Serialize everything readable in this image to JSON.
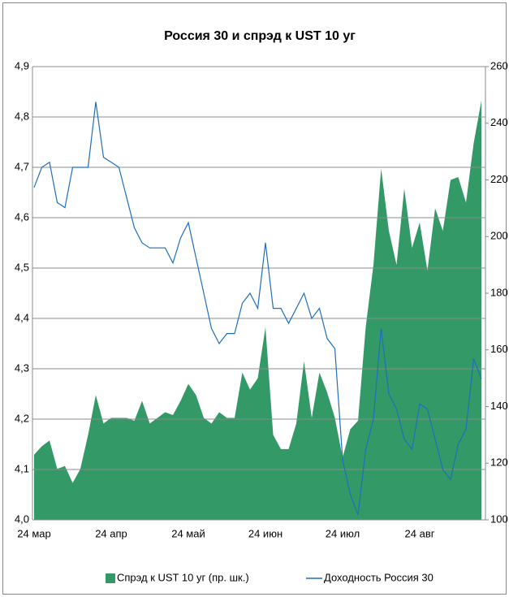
{
  "chart_data": {
    "type": "line",
    "title": "Россия 30 и спрэд к UST 10 уг",
    "categories": [
      "24 мар",
      null,
      null,
      null,
      null,
      null,
      null,
      null,
      null,
      null,
      "24 апр",
      null,
      null,
      null,
      null,
      null,
      null,
      null,
      null,
      null,
      "24 май",
      null,
      null,
      null,
      null,
      null,
      null,
      null,
      null,
      null,
      "24 июн",
      null,
      null,
      null,
      null,
      null,
      null,
      null,
      null,
      null,
      "24 июл",
      null,
      null,
      null,
      null,
      null,
      null,
      null,
      null,
      null,
      "24 авг",
      null,
      null,
      null,
      null,
      null,
      null,
      null,
      null
    ],
    "series": [
      {
        "name": "Спрэд к UST 10 уг (пр. шк.)",
        "type": "area",
        "axis": "y2",
        "color": "#339966",
        "values": [
          123,
          126,
          128,
          118,
          119,
          113,
          118,
          130,
          144,
          134,
          136,
          136,
          136,
          135,
          142,
          134,
          136,
          138,
          137,
          142,
          148,
          144,
          136,
          134,
          138,
          136,
          136,
          152,
          146,
          150,
          168,
          130,
          125,
          125,
          134,
          156,
          136,
          152,
          145,
          136,
          122,
          132,
          135,
          168,
          190,
          224,
          202,
          190,
          217,
          196,
          205,
          188,
          210,
          202,
          220,
          221,
          212,
          233,
          248
        ]
      },
      {
        "name": "Доходность Россия 30",
        "type": "line",
        "axis": "y",
        "color": "#1f6fbf",
        "values": [
          4.66,
          4.7,
          4.71,
          4.63,
          4.62,
          4.7,
          4.7,
          4.7,
          4.83,
          4.72,
          4.71,
          4.7,
          4.64,
          4.58,
          4.55,
          4.54,
          4.54,
          4.54,
          4.51,
          4.56,
          4.59,
          4.52,
          4.45,
          4.38,
          4.35,
          4.37,
          4.37,
          4.43,
          4.45,
          4.42,
          4.55,
          4.42,
          4.42,
          4.39,
          4.42,
          4.45,
          4.4,
          4.42,
          4.36,
          4.34,
          4.12,
          4.05,
          4.01,
          4.14,
          4.2,
          4.38,
          4.25,
          4.22,
          4.16,
          4.14,
          4.23,
          4.22,
          4.16,
          4.1,
          4.08,
          4.15,
          4.18,
          4.32,
          4.28
        ]
      }
    ],
    "ylim": [
      4.0,
      4.9
    ],
    "yticks": [
      {
        "value": 4.0,
        "label": "4,0"
      },
      {
        "value": 4.1,
        "label": "4,1"
      },
      {
        "value": 4.2,
        "label": "4,2"
      },
      {
        "value": 4.3,
        "label": "4,3"
      },
      {
        "value": 4.4,
        "label": "4,4"
      },
      {
        "value": 4.5,
        "label": "4,5"
      },
      {
        "value": 4.6,
        "label": "4,6"
      },
      {
        "value": 4.7,
        "label": "4,7"
      },
      {
        "value": 4.8,
        "label": "4,8"
      },
      {
        "value": 4.9,
        "label": "4,9"
      }
    ],
    "y2lim": [
      100,
      260
    ],
    "y2ticks": [
      100,
      120,
      140,
      160,
      180,
      200,
      220,
      240,
      260
    ],
    "grid": true,
    "legend": "bottom"
  }
}
